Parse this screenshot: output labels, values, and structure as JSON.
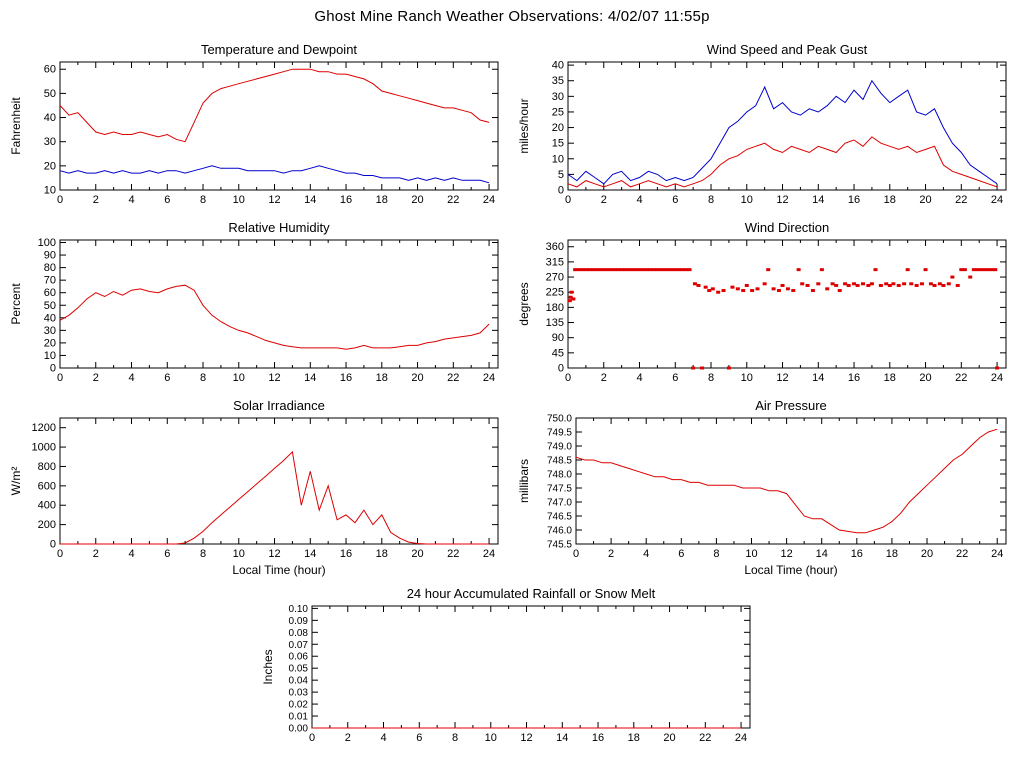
{
  "page_title": "Ghost Mine Ranch Weather Observations: 4/02/07 11:55p",
  "colors": {
    "red": "#dd0000",
    "blue": "#0000cc",
    "axis": "#000000",
    "background": "#ffffff"
  },
  "x_axis": {
    "ticks": [
      0,
      2,
      4,
      6,
      8,
      10,
      12,
      14,
      16,
      18,
      20,
      22,
      24
    ],
    "minor_step": 1,
    "range": [
      0,
      24.5
    ]
  },
  "chart_data": [
    {
      "id": "temperature-dewpoint",
      "type": "line",
      "title": "Temperature and Dewpoint",
      "ylabel": "Fahrenheit",
      "xlabel": "",
      "ylim": [
        10,
        63
      ],
      "yticks": [
        10,
        20,
        30,
        40,
        50,
        60
      ],
      "series": [
        {
          "name": "Temperature",
          "color": "red",
          "x_start": 0,
          "x_step": 0.5,
          "y": [
            45,
            41,
            42,
            38,
            34,
            33,
            34,
            33,
            33,
            34,
            33,
            32,
            33,
            31,
            30,
            38,
            46,
            50,
            52,
            53,
            54,
            55,
            56,
            57,
            58,
            59,
            60,
            60,
            60,
            59,
            59,
            58,
            58,
            57,
            56,
            54,
            51,
            50,
            49,
            48,
            47,
            46,
            45,
            44,
            44,
            43,
            42,
            39,
            38
          ]
        },
        {
          "name": "Dewpoint",
          "color": "blue",
          "x_start": 0,
          "x_step": 0.5,
          "y": [
            18,
            17,
            18,
            17,
            17,
            18,
            17,
            18,
            17,
            17,
            18,
            17,
            18,
            18,
            17,
            18,
            19,
            20,
            19,
            19,
            19,
            18,
            18,
            18,
            18,
            17,
            18,
            18,
            19,
            20,
            19,
            18,
            17,
            17,
            16,
            16,
            15,
            15,
            15,
            14,
            15,
            14,
            15,
            14,
            15,
            14,
            14,
            14,
            13
          ]
        }
      ]
    },
    {
      "id": "wind-speed-gust",
      "type": "line",
      "title": "Wind Speed and Peak Gust",
      "ylabel": "miles/hour",
      "xlabel": "",
      "ylim": [
        0,
        41
      ],
      "yticks": [
        0,
        5,
        10,
        15,
        20,
        25,
        30,
        35,
        40
      ],
      "series": [
        {
          "name": "Peak Gust",
          "color": "blue",
          "x_start": 0,
          "x_step": 0.5,
          "y": [
            5,
            3,
            6,
            4,
            2,
            5,
            6,
            3,
            4,
            6,
            5,
            3,
            4,
            3,
            4,
            7,
            10,
            15,
            20,
            22,
            25,
            27,
            33,
            26,
            28,
            25,
            24,
            26,
            25,
            27,
            30,
            28,
            32,
            29,
            35,
            31,
            28,
            30,
            32,
            25,
            24,
            26,
            20,
            15,
            12,
            8,
            6,
            4,
            2
          ]
        },
        {
          "name": "Wind Speed",
          "color": "red",
          "x_start": 0,
          "x_step": 0.5,
          "y": [
            2,
            1,
            3,
            2,
            1,
            2,
            3,
            1,
            2,
            3,
            2,
            1,
            2,
            1,
            2,
            3,
            5,
            8,
            10,
            11,
            13,
            14,
            15,
            13,
            12,
            14,
            13,
            12,
            14,
            13,
            12,
            15,
            16,
            14,
            17,
            15,
            14,
            13,
            14,
            12,
            13,
            14,
            8,
            6,
            5,
            4,
            3,
            2,
            1
          ]
        }
      ]
    },
    {
      "id": "relative-humidity",
      "type": "line",
      "title": "Relative Humidity",
      "ylabel": "Percent",
      "xlabel": "",
      "ylim": [
        0,
        102
      ],
      "yticks": [
        0,
        10,
        20,
        30,
        40,
        50,
        60,
        70,
        80,
        90,
        100
      ],
      "series": [
        {
          "name": "Relative Humidity",
          "color": "red",
          "x_start": 0,
          "x_step": 0.5,
          "y": [
            38,
            42,
            48,
            55,
            60,
            57,
            61,
            58,
            62,
            63,
            61,
            60,
            63,
            65,
            66,
            62,
            50,
            42,
            37,
            33,
            30,
            28,
            25,
            22,
            20,
            18,
            17,
            16,
            16,
            16,
            16,
            16,
            15,
            16,
            18,
            16,
            16,
            16,
            17,
            18,
            18,
            20,
            21,
            23,
            24,
            25,
            26,
            28,
            35
          ]
        }
      ]
    },
    {
      "id": "wind-direction",
      "type": "scatter",
      "title": "Wind Direction",
      "ylabel": "degrees",
      "xlabel": "",
      "ylim": [
        0,
        380
      ],
      "yticks": [
        0,
        45,
        90,
        135,
        180,
        225,
        270,
        315,
        360
      ],
      "series": [
        {
          "name": "Wind Direction",
          "color": "red",
          "points": [
            [
              0.1,
              200
            ],
            [
              0.15,
              210
            ],
            [
              0.2,
              225
            ],
            [
              0.3,
              205
            ],
            [
              0.4,
              292
            ],
            [
              0.6,
              292
            ],
            [
              0.8,
              292
            ],
            [
              1.0,
              292
            ],
            [
              1.2,
              292
            ],
            [
              1.4,
              292
            ],
            [
              1.6,
              292
            ],
            [
              1.8,
              292
            ],
            [
              2.0,
              292
            ],
            [
              2.2,
              292
            ],
            [
              2.4,
              292
            ],
            [
              2.6,
              292
            ],
            [
              2.8,
              292
            ],
            [
              3.0,
              292
            ],
            [
              3.2,
              292
            ],
            [
              3.4,
              292
            ],
            [
              3.6,
              292
            ],
            [
              3.8,
              292
            ],
            [
              4.0,
              292
            ],
            [
              4.2,
              292
            ],
            [
              4.4,
              292
            ],
            [
              4.6,
              292
            ],
            [
              4.8,
              292
            ],
            [
              5.0,
              292
            ],
            [
              5.2,
              292
            ],
            [
              5.4,
              292
            ],
            [
              5.6,
              292
            ],
            [
              5.8,
              292
            ],
            [
              6.0,
              292
            ],
            [
              6.2,
              292
            ],
            [
              6.4,
              292
            ],
            [
              6.6,
              292
            ],
            [
              6.8,
              292
            ],
            [
              7.0,
              0
            ],
            [
              7.1,
              250
            ],
            [
              7.3,
              245
            ],
            [
              7.5,
              0
            ],
            [
              7.7,
              240
            ],
            [
              7.9,
              230
            ],
            [
              8.1,
              235
            ],
            [
              8.4,
              225
            ],
            [
              8.7,
              230
            ],
            [
              9.0,
              0
            ],
            [
              9.2,
              240
            ],
            [
              9.5,
              235
            ],
            [
              9.8,
              230
            ],
            [
              10.0,
              245
            ],
            [
              10.3,
              230
            ],
            [
              10.6,
              235
            ],
            [
              11.0,
              250
            ],
            [
              11.2,
              292
            ],
            [
              11.5,
              235
            ],
            [
              11.8,
              230
            ],
            [
              12.0,
              245
            ],
            [
              12.3,
              235
            ],
            [
              12.6,
              230
            ],
            [
              12.9,
              292
            ],
            [
              13.1,
              250
            ],
            [
              13.4,
              245
            ],
            [
              13.7,
              230
            ],
            [
              14.0,
              250
            ],
            [
              14.2,
              292
            ],
            [
              14.5,
              235
            ],
            [
              14.8,
              250
            ],
            [
              15.0,
              245
            ],
            [
              15.2,
              230
            ],
            [
              15.5,
              250
            ],
            [
              15.7,
              245
            ],
            [
              16.0,
              250
            ],
            [
              16.2,
              245
            ],
            [
              16.5,
              250
            ],
            [
              16.8,
              245
            ],
            [
              17.0,
              250
            ],
            [
              17.2,
              292
            ],
            [
              17.5,
              245
            ],
            [
              17.8,
              250
            ],
            [
              18.0,
              245
            ],
            [
              18.2,
              250
            ],
            [
              18.5,
              245
            ],
            [
              18.8,
              250
            ],
            [
              19.0,
              292
            ],
            [
              19.2,
              250
            ],
            [
              19.5,
              245
            ],
            [
              19.8,
              250
            ],
            [
              20.0,
              292
            ],
            [
              20.3,
              250
            ],
            [
              20.5,
              245
            ],
            [
              20.8,
              250
            ],
            [
              21.0,
              245
            ],
            [
              21.3,
              250
            ],
            [
              21.5,
              270
            ],
            [
              21.8,
              245
            ],
            [
              22.0,
              292
            ],
            [
              22.2,
              292
            ],
            [
              22.5,
              270
            ],
            [
              22.7,
              292
            ],
            [
              22.9,
              292
            ],
            [
              23.1,
              292
            ],
            [
              23.3,
              292
            ],
            [
              23.5,
              292
            ],
            [
              23.7,
              292
            ],
            [
              23.9,
              292
            ],
            [
              24.0,
              0
            ]
          ]
        }
      ]
    },
    {
      "id": "solar-irradiance",
      "type": "line",
      "title": "Solar Irradiance",
      "ylabel": "W/m²",
      "xlabel": "Local Time (hour)",
      "ylim": [
        0,
        1300
      ],
      "yticks": [
        0,
        200,
        400,
        600,
        800,
        1000,
        1200
      ],
      "series": [
        {
          "name": "Solar Irradiance",
          "color": "red",
          "x_start": 0,
          "x_step": 0.5,
          "y": [
            0,
            0,
            0,
            0,
            0,
            0,
            0,
            0,
            0,
            0,
            0,
            0,
            0,
            0,
            10,
            60,
            130,
            220,
            300,
            380,
            460,
            540,
            620,
            700,
            780,
            860,
            950,
            400,
            750,
            350,
            600,
            250,
            300,
            220,
            350,
            200,
            300,
            120,
            60,
            20,
            5,
            0,
            0,
            0,
            0,
            0,
            0,
            0,
            0
          ]
        }
      ]
    },
    {
      "id": "air-pressure",
      "type": "line",
      "title": "Air Pressure",
      "ylabel": "millibars",
      "xlabel": "Local Time (hour)",
      "ylim": [
        745.5,
        750.0
      ],
      "yticks": [
        745.5,
        746.0,
        746.5,
        747.0,
        747.5,
        748.0,
        748.5,
        749.0,
        749.5,
        750.0
      ],
      "ytick_labels": [
        "745.5",
        "746.0",
        "746.5",
        "747.0",
        "747.5",
        "748.0",
        "748.5",
        "749.0",
        "749.5",
        "750.0"
      ],
      "ytick_font": 10,
      "series": [
        {
          "name": "Air Pressure",
          "color": "red",
          "x_start": 0,
          "x_step": 0.5,
          "y": [
            748.6,
            748.5,
            748.5,
            748.4,
            748.4,
            748.3,
            748.2,
            748.1,
            748.0,
            747.9,
            747.9,
            747.8,
            747.8,
            747.7,
            747.7,
            747.6,
            747.6,
            747.6,
            747.6,
            747.5,
            747.5,
            747.5,
            747.4,
            747.4,
            747.3,
            746.9,
            746.5,
            746.4,
            746.4,
            746.2,
            746.0,
            745.95,
            745.9,
            745.9,
            746.0,
            746.1,
            746.3,
            746.6,
            747.0,
            747.3,
            747.6,
            747.9,
            748.2,
            748.5,
            748.7,
            749.0,
            749.3,
            749.5,
            749.6
          ]
        }
      ]
    },
    {
      "id": "rainfall",
      "type": "line",
      "title": "24 hour Accumulated Rainfall or Snow Melt",
      "ylabel": "Inches",
      "xlabel": "",
      "ylim": [
        0,
        0.102
      ],
      "yticks": [
        0,
        0.01,
        0.02,
        0.03,
        0.04,
        0.05,
        0.06,
        0.07,
        0.08,
        0.09,
        0.1
      ],
      "ytick_labels": [
        "0.00",
        "0.01",
        "0.02",
        "0.03",
        "0.04",
        "0.05",
        "0.06",
        "0.07",
        "0.08",
        "0.09",
        "0.10"
      ],
      "ytick_font": 10,
      "series": [
        {
          "name": "Accumulated Rainfall",
          "color": "red",
          "x_start": 0,
          "x_step": 12,
          "y": [
            0,
            0,
            0
          ]
        }
      ]
    }
  ]
}
